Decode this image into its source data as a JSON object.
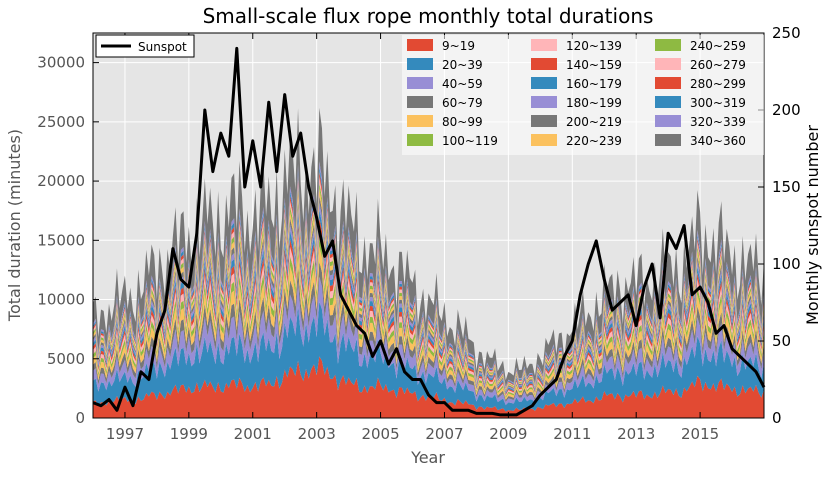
{
  "chart_data": {
    "type": "area",
    "title": "Small-scale flux rope monthly total durations",
    "xlabel": "Year",
    "ylabel": "Total duration (minutes)",
    "y2label": "Monthly sunspot number",
    "xlim": [
      1996.0,
      2017.0
    ],
    "ylim": [
      0,
      32500
    ],
    "y2lim": [
      0,
      250
    ],
    "xticks": [
      1997,
      1999,
      2001,
      2003,
      2005,
      2007,
      2009,
      2011,
      2013,
      2015
    ],
    "xtick_labels": [
      "1997",
      "1999",
      "2001",
      "2003",
      "2005",
      "2007",
      "2009",
      "2011",
      "2013",
      "2015"
    ],
    "yticks": [
      0,
      5000,
      10000,
      15000,
      20000,
      25000,
      30000
    ],
    "ytick_labels": [
      "0",
      "5000",
      "10000",
      "15000",
      "20000",
      "25000",
      "30000"
    ],
    "y2ticks": [
      0,
      50,
      100,
      150,
      200,
      250
    ],
    "y2tick_labels": [
      "0",
      "50",
      "100",
      "150",
      "200",
      "250"
    ],
    "grid": true,
    "stack_anchor_years": [
      1996.0,
      1996.5,
      1997.0,
      1997.5,
      1998.0,
      1998.5,
      1999.0,
      1999.5,
      2000.0,
      2000.5,
      2001.0,
      2001.5,
      2002.0,
      2002.5,
      2003.0,
      2003.5,
      2004.0,
      2004.5,
      2005.0,
      2005.5,
      2006.0,
      2006.5,
      2007.0,
      2007.5,
      2008.0,
      2008.5,
      2009.0,
      2009.5,
      2010.0,
      2010.5,
      2011.0,
      2011.5,
      2012.0,
      2012.5,
      2013.0,
      2013.5,
      2014.0,
      2014.5,
      2015.0,
      2015.5,
      2016.0,
      2016.5,
      2017.0
    ],
    "series": [
      {
        "name": "9~19",
        "color": "#E24A33",
        "values": [
          1200,
          1400,
          1500,
          1600,
          2000,
          2200,
          2600,
          2600,
          2700,
          2800,
          2700,
          2800,
          3600,
          3900,
          4300,
          3600,
          2900,
          2600,
          2600,
          2400,
          2000,
          1800,
          1500,
          1300,
          1000,
          800,
          700,
          700,
          900,
          1100,
          1300,
          1500,
          1800,
          1900,
          1900,
          2000,
          2200,
          2300,
          3000,
          2700,
          2500,
          2300,
          2200
        ]
      },
      {
        "name": "20~39",
        "color": "#348ABD",
        "values": [
          1500,
          1700,
          1800,
          2000,
          2300,
          2500,
          2800,
          2900,
          3000,
          3100,
          3000,
          3100,
          3500,
          3700,
          3800,
          3400,
          2900,
          2600,
          2500,
          2300,
          2000,
          1800,
          1500,
          1300,
          1000,
          800,
          700,
          700,
          900,
          1100,
          1300,
          1500,
          1800,
          2000,
          2000,
          2100,
          2200,
          2300,
          2800,
          2600,
          2400,
          2200,
          2100
        ]
      },
      {
        "name": "40~59",
        "color": "#988ED5",
        "values": [
          700,
          800,
          850,
          950,
          1100,
          1200,
          1350,
          1400,
          1450,
          1500,
          1450,
          1500,
          1600,
          1650,
          1700,
          1550,
          1350,
          1200,
          1150,
          1050,
          900,
          800,
          700,
          600,
          480,
          400,
          350,
          350,
          450,
          550,
          650,
          750,
          850,
          950,
          950,
          1000,
          1050,
          1100,
          1300,
          1200,
          1100,
          1050,
          1000
        ]
      },
      {
        "name": "60~79",
        "color": "#777777",
        "values": [
          450,
          500,
          550,
          600,
          700,
          750,
          850,
          850,
          900,
          950,
          900,
          950,
          1000,
          1050,
          1050,
          950,
          850,
          750,
          700,
          650,
          560,
          500,
          440,
          380,
          300,
          250,
          220,
          220,
          280,
          340,
          400,
          470,
          530,
          590,
          590,
          620,
          650,
          680,
          800,
          750,
          700,
          650,
          620
        ]
      },
      {
        "name": "80~99",
        "color": "#FBC15E",
        "values": [
          450,
          500,
          550,
          600,
          700,
          750,
          850,
          850,
          900,
          950,
          900,
          950,
          1000,
          1050,
          1050,
          950,
          850,
          750,
          700,
          650,
          560,
          500,
          440,
          380,
          300,
          250,
          220,
          220,
          280,
          340,
          400,
          470,
          530,
          590,
          590,
          620,
          650,
          680,
          800,
          750,
          700,
          650,
          620
        ]
      },
      {
        "name": "100~119",
        "color": "#8EBA42",
        "values": [
          300,
          340,
          370,
          400,
          460,
          500,
          560,
          570,
          600,
          630,
          600,
          630,
          680,
          700,
          700,
          640,
          570,
          500,
          470,
          440,
          380,
          340,
          300,
          260,
          200,
          170,
          150,
          150,
          190,
          230,
          270,
          320,
          360,
          400,
          400,
          420,
          440,
          460,
          540,
          500,
          470,
          440,
          420
        ]
      },
      {
        "name": "120~139",
        "color": "#FFB5B8",
        "values": [
          300,
          340,
          370,
          400,
          460,
          500,
          560,
          570,
          600,
          630,
          600,
          630,
          680,
          700,
          700,
          640,
          570,
          500,
          470,
          440,
          380,
          340,
          300,
          260,
          200,
          170,
          150,
          150,
          190,
          230,
          270,
          320,
          360,
          400,
          400,
          420,
          440,
          460,
          540,
          500,
          470,
          440,
          420
        ]
      },
      {
        "name": "140~159",
        "color": "#E24A33",
        "values": [
          250,
          280,
          300,
          330,
          380,
          410,
          460,
          470,
          500,
          520,
          500,
          520,
          560,
          580,
          580,
          530,
          470,
          410,
          390,
          360,
          310,
          280,
          250,
          210,
          170,
          140,
          120,
          120,
          160,
          190,
          220,
          260,
          300,
          330,
          330,
          350,
          360,
          380,
          450,
          420,
          390,
          360,
          350
        ]
      },
      {
        "name": "160~179",
        "color": "#348ABD",
        "values": [
          250,
          280,
          300,
          330,
          380,
          410,
          460,
          470,
          500,
          520,
          500,
          520,
          560,
          580,
          580,
          530,
          470,
          410,
          390,
          360,
          310,
          280,
          250,
          210,
          170,
          140,
          120,
          120,
          160,
          190,
          220,
          260,
          300,
          330,
          330,
          350,
          360,
          380,
          450,
          420,
          390,
          360,
          350
        ]
      },
      {
        "name": "180~199",
        "color": "#988ED5",
        "values": [
          200,
          230,
          250,
          270,
          310,
          340,
          380,
          390,
          410,
          430,
          410,
          430,
          460,
          480,
          480,
          440,
          390,
          340,
          320,
          300,
          260,
          230,
          200,
          180,
          140,
          120,
          100,
          100,
          130,
          160,
          180,
          220,
          250,
          270,
          270,
          290,
          300,
          310,
          370,
          350,
          320,
          300,
          290
        ]
      },
      {
        "name": "200~219",
        "color": "#777777",
        "values": [
          200,
          230,
          250,
          270,
          310,
          340,
          380,
          390,
          410,
          430,
          410,
          430,
          460,
          480,
          480,
          440,
          390,
          340,
          320,
          300,
          260,
          230,
          200,
          180,
          140,
          120,
          100,
          100,
          130,
          160,
          180,
          220,
          250,
          270,
          270,
          290,
          300,
          310,
          370,
          350,
          320,
          300,
          290
        ]
      },
      {
        "name": "220~239",
        "color": "#FBC15E",
        "values": [
          200,
          220,
          240,
          260,
          300,
          320,
          360,
          370,
          390,
          410,
          390,
          410,
          440,
          460,
          460,
          420,
          370,
          320,
          300,
          280,
          250,
          220,
          200,
          170,
          130,
          110,
          95,
          95,
          120,
          150,
          170,
          200,
          230,
          250,
          250,
          270,
          280,
          290,
          350,
          330,
          300,
          280,
          270
        ]
      },
      {
        "name": "240~259",
        "color": "#8EBA42",
        "values": [
          180,
          200,
          220,
          240,
          270,
          290,
          330,
          340,
          360,
          370,
          360,
          370,
          400,
          410,
          410,
          380,
          340,
          290,
          280,
          260,
          220,
          200,
          180,
          160,
          120,
          100,
          85,
          85,
          110,
          140,
          160,
          190,
          210,
          230,
          230,
          240,
          250,
          260,
          320,
          300,
          280,
          260,
          250
        ]
      },
      {
        "name": "260~279",
        "color": "#FFB5B8",
        "values": [
          180,
          200,
          220,
          240,
          270,
          290,
          330,
          340,
          360,
          370,
          360,
          370,
          400,
          410,
          410,
          380,
          340,
          290,
          280,
          260,
          220,
          200,
          180,
          160,
          120,
          100,
          85,
          85,
          110,
          140,
          160,
          190,
          210,
          230,
          230,
          240,
          250,
          260,
          320,
          300,
          280,
          260,
          250
        ]
      },
      {
        "name": "280~299",
        "color": "#E24A33",
        "values": [
          150,
          170,
          190,
          200,
          230,
          250,
          280,
          290,
          300,
          320,
          300,
          320,
          340,
          350,
          350,
          320,
          290,
          250,
          240,
          220,
          190,
          170,
          150,
          130,
          100,
          85,
          75,
          75,
          95,
          115,
          135,
          160,
          180,
          200,
          200,
          210,
          220,
          230,
          270,
          250,
          240,
          220,
          210
        ]
      },
      {
        "name": "300~319",
        "color": "#348ABD",
        "values": [
          150,
          170,
          190,
          200,
          230,
          250,
          280,
          290,
          300,
          320,
          300,
          320,
          340,
          350,
          350,
          320,
          290,
          250,
          240,
          220,
          190,
          170,
          150,
          130,
          100,
          85,
          75,
          75,
          95,
          115,
          135,
          160,
          180,
          200,
          200,
          210,
          220,
          230,
          270,
          250,
          240,
          220,
          210
        ]
      },
      {
        "name": "320~339",
        "color": "#988ED5",
        "values": [
          150,
          170,
          190,
          200,
          230,
          250,
          280,
          290,
          300,
          320,
          300,
          320,
          340,
          350,
          350,
          320,
          290,
          250,
          240,
          220,
          190,
          170,
          150,
          130,
          100,
          85,
          75,
          75,
          95,
          115,
          135,
          160,
          180,
          200,
          200,
          210,
          220,
          230,
          270,
          250,
          240,
          220,
          210
        ]
      },
      {
        "name": "340~360",
        "color": "#777777",
        "values": [
          1500,
          1700,
          1800,
          2000,
          2300,
          2500,
          2700,
          2900,
          3100,
          3300,
          3100,
          3200,
          3600,
          3800,
          3700,
          3300,
          2900,
          2500,
          2400,
          2300,
          1900,
          1700,
          1500,
          1300,
          1000,
          800,
          700,
          700,
          900,
          1100,
          1400,
          1600,
          1800,
          2000,
          2000,
          2100,
          2200,
          2300,
          2800,
          2600,
          2400,
          2300,
          2200
        ]
      }
    ],
    "sunspot": {
      "name": "Sunspot",
      "color": "#000000",
      "x": [
        1996.0,
        1996.25,
        1996.5,
        1996.75,
        1997.0,
        1997.25,
        1997.5,
        1997.75,
        1998.0,
        1998.25,
        1998.5,
        1998.75,
        1999.0,
        1999.25,
        1999.5,
        1999.75,
        2000.0,
        2000.25,
        2000.5,
        2000.75,
        2001.0,
        2001.25,
        2001.5,
        2001.75,
        2002.0,
        2002.25,
        2002.5,
        2002.75,
        2003.0,
        2003.25,
        2003.5,
        2003.75,
        2004.0,
        2004.25,
        2004.5,
        2004.75,
        2005.0,
        2005.25,
        2005.5,
        2005.75,
        2006.0,
        2006.25,
        2006.5,
        2006.75,
        2007.0,
        2007.25,
        2007.5,
        2007.75,
        2008.0,
        2008.25,
        2008.5,
        2008.75,
        2009.0,
        2009.25,
        2009.5,
        2009.75,
        2010.0,
        2010.25,
        2010.5,
        2010.75,
        2011.0,
        2011.25,
        2011.5,
        2011.75,
        2012.0,
        2012.25,
        2012.5,
        2012.75,
        2013.0,
        2013.25,
        2013.5,
        2013.75,
        2014.0,
        2014.25,
        2014.5,
        2014.75,
        2015.0,
        2015.25,
        2015.5,
        2015.75,
        2016.0,
        2016.25,
        2016.5,
        2016.75,
        2017.0
      ],
      "y": [
        10,
        8,
        12,
        5,
        20,
        8,
        30,
        25,
        55,
        70,
        110,
        90,
        85,
        120,
        200,
        160,
        185,
        170,
        240,
        150,
        180,
        150,
        205,
        160,
        210,
        170,
        185,
        150,
        130,
        105,
        115,
        80,
        70,
        60,
        55,
        40,
        50,
        35,
        45,
        30,
        25,
        25,
        15,
        10,
        10,
        5,
        5,
        5,
        3,
        3,
        3,
        2,
        2,
        2,
        5,
        8,
        15,
        20,
        25,
        40,
        50,
        80,
        100,
        115,
        90,
        70,
        75,
        80,
        60,
        85,
        100,
        65,
        120,
        110,
        125,
        80,
        85,
        75,
        55,
        60,
        45,
        40,
        35,
        30,
        20
      ]
    },
    "legend": {
      "series_entry": "Sunspot",
      "series_placement": "top-left",
      "bins_placement": "top-right",
      "bins_columns": 3
    }
  }
}
